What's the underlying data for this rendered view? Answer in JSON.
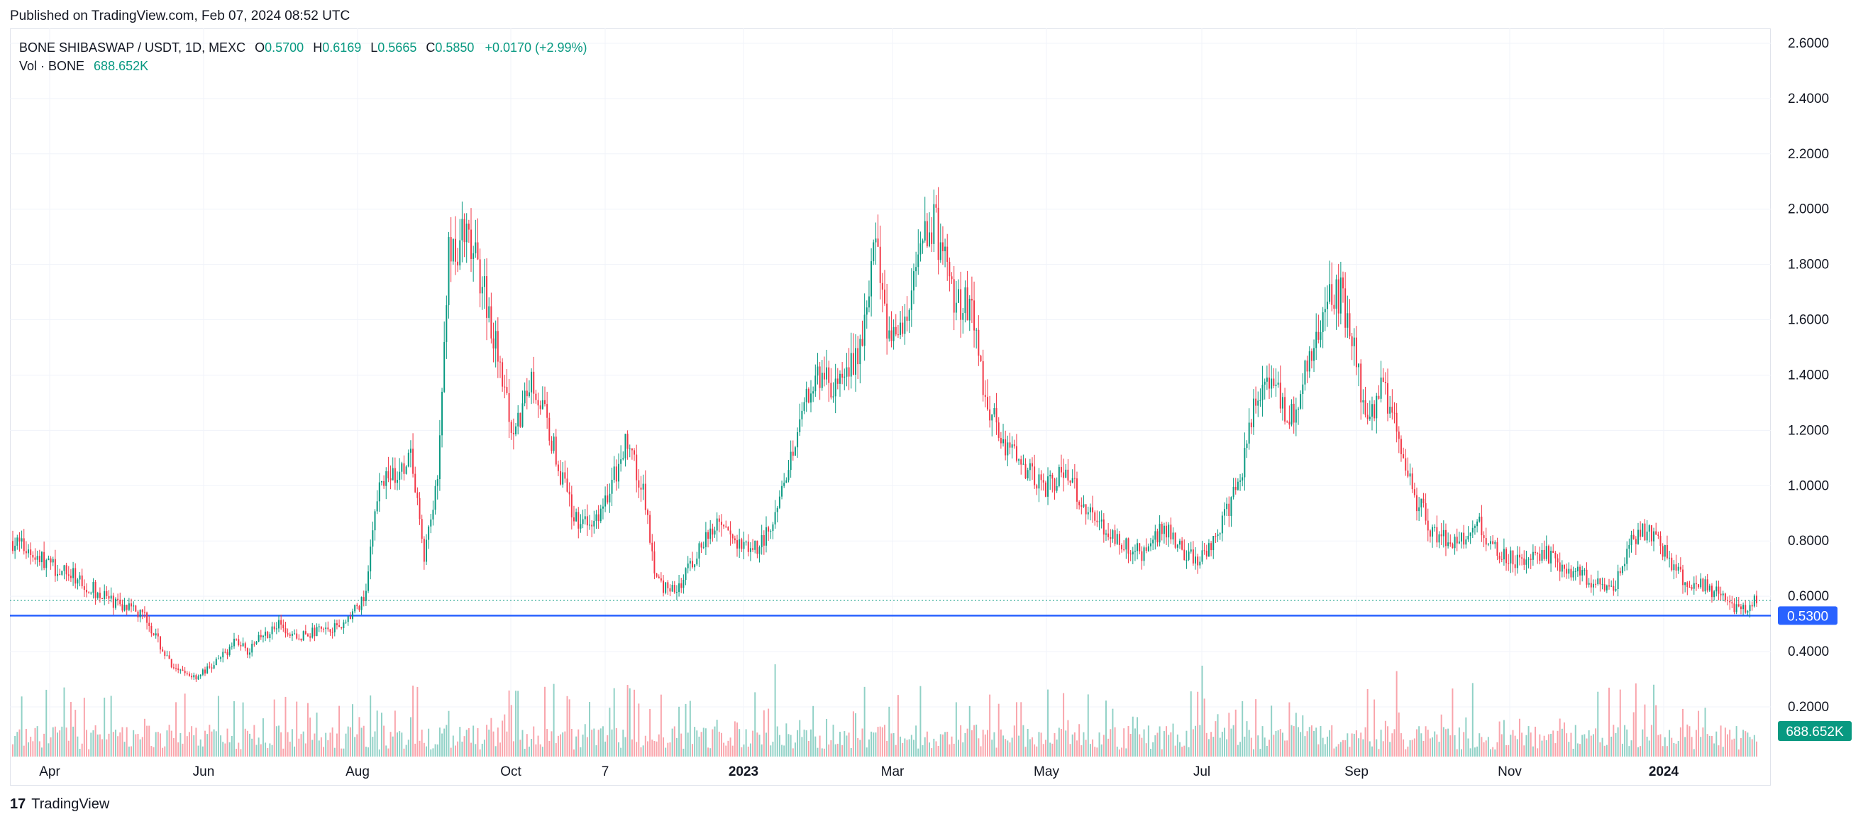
{
  "header": {
    "published": "Published on TradingView.com, Feb 07, 2024 08:52 UTC"
  },
  "legend": {
    "symbol": "BONE SHIBASWAP / USDT, 1D, MEXC",
    "open_label": "O",
    "open": "0.5700",
    "high_label": "H",
    "high": "0.6169",
    "low_label": "L",
    "low": "0.5665",
    "close_label": "C",
    "close": "0.5850",
    "change": "+0.0170 (+2.99%)",
    "vol_label": "Vol · BONE",
    "vol_value": "688.652K"
  },
  "footer": {
    "brand": "TradingView",
    "logo": "17"
  },
  "colors": {
    "up": "#089981",
    "down": "#f23645",
    "level": "#2962ff"
  },
  "chart_data": {
    "type": "candlestick",
    "y_axis": {
      "ticks": [
        "2.6000",
        "2.4000",
        "2.2000",
        "2.0000",
        "1.8000",
        "1.6000",
        "1.4000",
        "1.2000",
        "1.0000",
        "0.8000",
        "0.6000",
        "0.4000",
        "0.2000"
      ],
      "range": [
        0.0,
        2.65
      ]
    },
    "x_axis": {
      "ticks": [
        "Apr",
        "Jun",
        "Aug",
        "Oct",
        "7",
        "2023",
        "Mar",
        "May",
        "Jul",
        "Sep",
        "Nov",
        "2024"
      ],
      "bold": [
        "2023",
        "2024"
      ]
    },
    "horizontal_line": {
      "value": 0.53,
      "label": "0.5300"
    },
    "last_price": 0.585,
    "last_volume_label": "688.652K",
    "price_path": [
      [
        0,
        0.8
      ],
      [
        8,
        0.76
      ],
      [
        20,
        0.7
      ],
      [
        30,
        0.66
      ],
      [
        40,
        0.6
      ],
      [
        50,
        0.56
      ],
      [
        60,
        0.52
      ],
      [
        66,
        0.42
      ],
      [
        72,
        0.33
      ],
      [
        82,
        0.31
      ],
      [
        90,
        0.35
      ],
      [
        100,
        0.44
      ],
      [
        106,
        0.4
      ],
      [
        112,
        0.46
      ],
      [
        120,
        0.5
      ],
      [
        128,
        0.45
      ],
      [
        138,
        0.48
      ],
      [
        148,
        0.5
      ],
      [
        158,
        0.6
      ],
      [
        164,
        1.05
      ],
      [
        172,
        1.02
      ],
      [
        178,
        1.1
      ],
      [
        184,
        0.75
      ],
      [
        190,
        1.0
      ],
      [
        195,
        1.85
      ],
      [
        202,
        1.9
      ],
      [
        210,
        1.75
      ],
      [
        218,
        1.45
      ],
      [
        224,
        1.15
      ],
      [
        232,
        1.4
      ],
      [
        240,
        1.2
      ],
      [
        250,
        0.9
      ],
      [
        258,
        0.85
      ],
      [
        266,
        0.95
      ],
      [
        274,
        1.15
      ],
      [
        282,
        1.0
      ],
      [
        288,
        0.65
      ],
      [
        296,
        0.62
      ],
      [
        306,
        0.75
      ],
      [
        314,
        0.85
      ],
      [
        324,
        0.8
      ],
      [
        334,
        0.78
      ],
      [
        342,
        0.9
      ],
      [
        352,
        1.25
      ],
      [
        362,
        1.4
      ],
      [
        372,
        1.35
      ],
      [
        380,
        1.55
      ],
      [
        386,
        1.85
      ],
      [
        392,
        1.55
      ],
      [
        400,
        1.6
      ],
      [
        406,
        1.9
      ],
      [
        412,
        1.95
      ],
      [
        420,
        1.7
      ],
      [
        428,
        1.65
      ],
      [
        436,
        1.3
      ],
      [
        444,
        1.15
      ],
      [
        452,
        1.05
      ],
      [
        462,
        1.0
      ],
      [
        470,
        1.05
      ],
      [
        478,
        0.95
      ],
      [
        486,
        0.85
      ],
      [
        496,
        0.8
      ],
      [
        506,
        0.75
      ],
      [
        514,
        0.85
      ],
      [
        522,
        0.78
      ],
      [
        530,
        0.72
      ],
      [
        540,
        0.85
      ],
      [
        548,
        1.0
      ],
      [
        556,
        1.3
      ],
      [
        564,
        1.35
      ],
      [
        572,
        1.25
      ],
      [
        580,
        1.45
      ],
      [
        586,
        1.65
      ],
      [
        594,
        1.7
      ],
      [
        600,
        1.5
      ],
      [
        606,
        1.2
      ],
      [
        612,
        1.4
      ],
      [
        620,
        1.15
      ],
      [
        628,
        0.95
      ],
      [
        636,
        0.82
      ],
      [
        646,
        0.8
      ],
      [
        656,
        0.85
      ],
      [
        666,
        0.75
      ],
      [
        676,
        0.72
      ],
      [
        686,
        0.75
      ],
      [
        696,
        0.7
      ],
      [
        706,
        0.66
      ],
      [
        716,
        0.62
      ],
      [
        724,
        0.8
      ],
      [
        732,
        0.85
      ],
      [
        740,
        0.74
      ],
      [
        748,
        0.66
      ],
      [
        756,
        0.64
      ],
      [
        764,
        0.6
      ],
      [
        772,
        0.55
      ],
      [
        780,
        0.585
      ]
    ]
  }
}
